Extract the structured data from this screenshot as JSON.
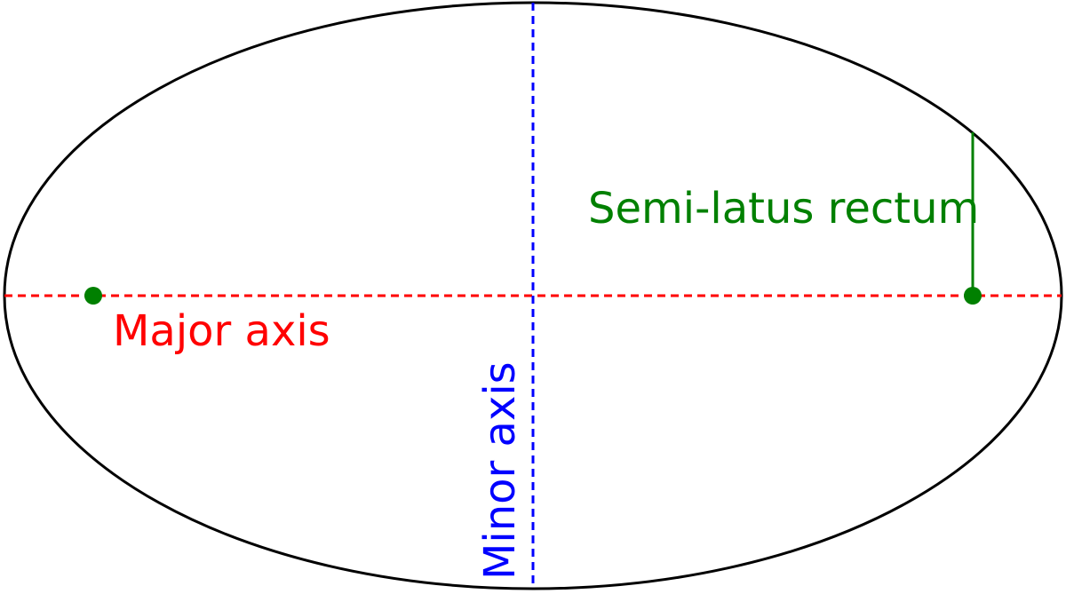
{
  "diagram": {
    "labels": {
      "major_axis": "Major axis",
      "minor_axis": "Minor axis",
      "semi_latus_rectum": "Semi-latus rectum"
    },
    "colors": {
      "ellipse": "#000000",
      "major_axis": "#ff0000",
      "minor_axis": "#0000ff",
      "semi_latus_rectum": "#008000",
      "foci": "#008000"
    }
  }
}
